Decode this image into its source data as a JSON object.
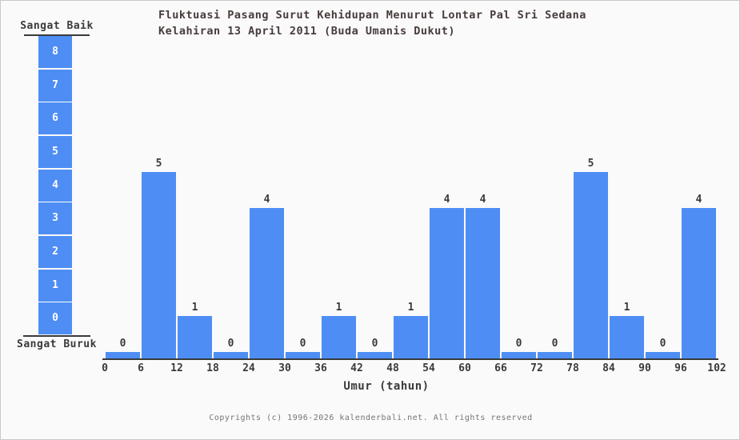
{
  "title": {
    "line1": "Fluktuasi Pasang Surut Kehidupan Menurut Lontar Pal Sri Sedana",
    "line2": "Kelahiran 13 April 2011 (Buda Umanis Dukut)"
  },
  "scale": {
    "top_label": "Sangat Baik",
    "bottom_label": "Sangat Buruk",
    "levels": [
      8,
      7,
      6,
      5,
      4,
      3,
      2,
      1,
      0
    ]
  },
  "chart_data": {
    "type": "bar",
    "title": "Fluktuasi Pasang Surut Kehidupan Menurut Lontar Pal Sri Sedana Kelahiran 13 April 2011 (Buda Umanis Dukut)",
    "xlabel": "Umur (tahun)",
    "ylabel": "Sangat Buruk (0) - Sangat Baik (8)",
    "x_ticks": [
      0,
      6,
      12,
      18,
      24,
      30,
      36,
      42,
      48,
      54,
      60,
      66,
      72,
      78,
      84,
      90,
      96,
      102
    ],
    "categories": [
      "0-6",
      "6-12",
      "12-18",
      "18-24",
      "24-30",
      "30-36",
      "36-42",
      "42-48",
      "48-54",
      "54-60",
      "60-66",
      "66-72",
      "72-78",
      "78-84",
      "84-90",
      "90-96",
      "96-102"
    ],
    "values": [
      0,
      5,
      1,
      0,
      4,
      0,
      1,
      0,
      1,
      4,
      4,
      0,
      0,
      5,
      1,
      0,
      4
    ],
    "ylim": [
      0,
      8
    ],
    "grid": false,
    "legend": "none",
    "bar_color": "#4e8ef4"
  },
  "footer": {
    "copyright": "Copyrights (c) 1996-2026 kalenderbali.net. All rights reserved"
  },
  "colors": {
    "background": "#fafafa",
    "border": "#c9c9c9",
    "bar": "#4e8ef4",
    "axis_and_labels": "#3a3a3a",
    "title_text": "#473b3b",
    "scale_number_text": "#ffffff",
    "footer_text": "#757575"
  }
}
